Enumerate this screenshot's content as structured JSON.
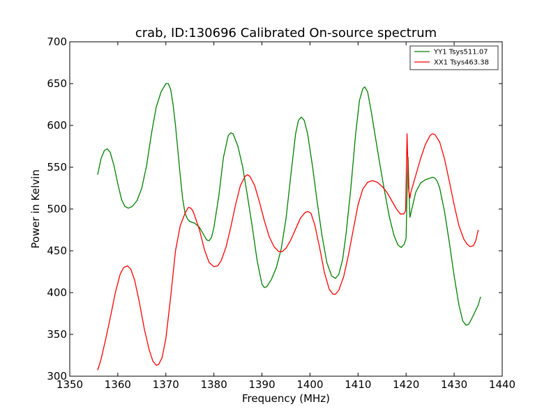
{
  "chart_data": {
    "type": "line",
    "title": "crab, ID:130696 Calibrated On-source spectrum",
    "xlabel": "Frequency (MHz)",
    "ylabel": "Power in Kelvin",
    "xlim": [
      1350,
      1440
    ],
    "ylim": [
      300,
      700
    ],
    "xticks": [
      "1350",
      "1360",
      "1370",
      "1380",
      "1390",
      "1400",
      "1410",
      "1420",
      "1430",
      "1440"
    ],
    "yticks": [
      "300",
      "350",
      "400",
      "450",
      "500",
      "550",
      "600",
      "650",
      "700"
    ],
    "grid": false,
    "legend_position": "top-right",
    "series": [
      {
        "name": "YY1 Tsys511.07",
        "color": "#008000",
        "x": [
          1355.8,
          1356.5,
          1357.2,
          1357.8,
          1358.4,
          1359.2,
          1360,
          1360.8,
          1361.5,
          1362.2,
          1363,
          1364,
          1365,
          1366,
          1367,
          1368,
          1369,
          1370,
          1370.5,
          1371,
          1371.5,
          1372,
          1372.5,
          1373,
          1373.5,
          1374,
          1374.5,
          1375,
          1376,
          1377,
          1378,
          1378.5,
          1379,
          1379.5,
          1380,
          1381,
          1382,
          1383,
          1383.5,
          1384,
          1385,
          1386,
          1387,
          1388,
          1389,
          1390,
          1390.5,
          1391,
          1392,
          1393,
          1394,
          1395,
          1396,
          1397,
          1397.6,
          1398.2,
          1398.8,
          1399.5,
          1400.5,
          1401.5,
          1402.5,
          1403.5,
          1404.5,
          1405.3,
          1406,
          1406.8,
          1407.5,
          1408.5,
          1409.5,
          1410.3,
          1411,
          1411.4,
          1412,
          1412.8,
          1413.5,
          1414.5,
          1415.5,
          1416.5,
          1417.5,
          1418.3,
          1419,
          1419.6,
          1420,
          1420.2,
          1420.4,
          1420.6,
          1420.8,
          1421,
          1422,
          1423,
          1424,
          1425,
          1425.5,
          1426,
          1426.5,
          1427,
          1428,
          1429,
          1430,
          1431,
          1431.8,
          1432.5,
          1433,
          1433.5,
          1434,
          1435,
          1435.5
        ],
        "values": [
          541,
          560,
          570,
          572,
          568,
          552,
          530,
          511,
          503,
          501,
          503,
          510,
          525,
          552,
          590,
          622,
          640,
          650,
          650,
          643,
          625,
          600,
          570,
          540,
          512,
          495,
          488,
          485,
          483,
          478,
          468,
          463,
          462,
          466,
          478,
          515,
          562,
          588,
          591,
          590,
          575,
          550,
          515,
          478,
          438,
          410,
          406,
          407,
          416,
          430,
          452,
          488,
          540,
          590,
          606,
          610,
          606,
          590,
          552,
          508,
          468,
          436,
          420,
          417,
          422,
          440,
          470,
          525,
          590,
          630,
          644,
          646,
          640,
          615,
          590,
          555,
          522,
          491,
          468,
          457,
          454,
          458,
          465,
          520,
          562,
          520,
          490,
          495,
          520,
          531,
          535,
          537,
          538,
          537,
          533,
          525,
          497,
          460,
          420,
          385,
          366,
          361,
          362,
          367,
          373,
          385,
          395
        ]
      },
      {
        "name": "XX1 Tsys463.38",
        "color": "#ff0000",
        "x": [
          1355.8,
          1356.5,
          1357.5,
          1358.5,
          1359.5,
          1360.5,
          1361.2,
          1362,
          1362.7,
          1363.5,
          1364.5,
          1365.5,
          1366.5,
          1367.3,
          1368,
          1368.5,
          1369.2,
          1370,
          1371,
          1372,
          1373,
          1374,
          1374.7,
          1375.2,
          1375.6,
          1376,
          1377,
          1378,
          1379,
          1380,
          1380.8,
          1381.5,
          1382.5,
          1383.5,
          1384.5,
          1385.5,
          1386.5,
          1387,
          1387.5,
          1388.5,
          1389.5,
          1390.5,
          1391.5,
          1392.5,
          1393.5,
          1394.2,
          1395,
          1396,
          1397,
          1398,
          1399,
          1399.6,
          1400.2,
          1401,
          1402,
          1403,
          1404,
          1404.8,
          1405.3,
          1406,
          1407,
          1408,
          1409,
          1410,
          1411,
          1412,
          1413,
          1414,
          1415,
          1416,
          1417,
          1418,
          1418.8,
          1419.5,
          1419.9,
          1420.2,
          1420.5,
          1420.8,
          1421,
          1422,
          1423,
          1424,
          1425,
          1425.5,
          1426,
          1427,
          1428,
          1429,
          1430,
          1431,
          1432,
          1432.7,
          1433.3,
          1434,
          1434.5,
          1435
        ],
        "values": [
          307,
          320,
          345,
          372,
          400,
          422,
          430,
          432,
          428,
          415,
          388,
          357,
          332,
          318,
          313,
          314,
          322,
          345,
          395,
          450,
          480,
          495,
          502,
          501,
          498,
          492,
          475,
          452,
          436,
          431,
          432,
          438,
          454,
          478,
          505,
          528,
          539,
          541,
          539,
          528,
          508,
          486,
          467,
          455,
          449,
          449,
          453,
          463,
          476,
          489,
          496,
          497,
          495,
          481,
          454,
          424,
          404,
          398,
          398,
          403,
          419,
          445,
          475,
          505,
          524,
          532,
          534,
          532,
          527,
          520,
          510,
          500,
          494,
          494,
          498,
          590,
          525,
          513,
          520,
          540,
          560,
          577,
          588,
          590,
          589,
          580,
          560,
          533,
          505,
          480,
          464,
          458,
          455,
          456,
          462,
          475
        ]
      }
    ]
  }
}
